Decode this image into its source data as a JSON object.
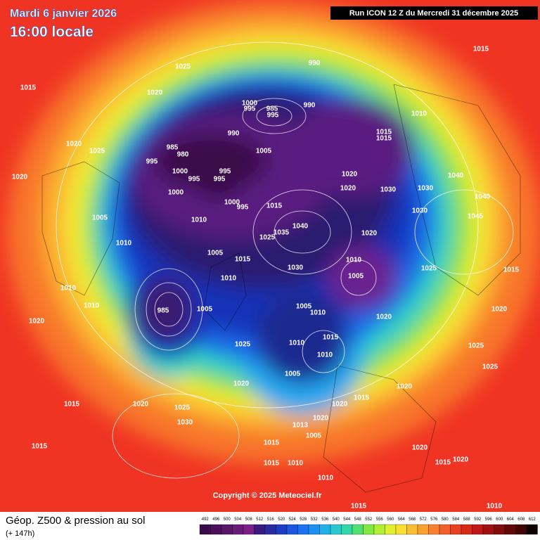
{
  "header": {
    "title": "Mardi 6 janvier 2026",
    "time": "16:00 locale",
    "run": "Run ICON 12 Z du Mercredi 31 décembre 2025"
  },
  "map": {
    "copyright": "Copyright © 2025 Meteociel.fr",
    "pressure_labels": [
      "1015",
      "1025",
      "1020",
      "990",
      "1015",
      "1000",
      "995",
      "985",
      "995",
      "990",
      "1010",
      "990",
      "1015",
      "1015",
      "985",
      "980",
      "1005",
      "995",
      "1020",
      "1025",
      "1020",
      "1020",
      "1000",
      "995",
      "995",
      "995",
      "1020",
      "1030",
      "1030",
      "1040",
      "1040",
      "1000",
      "1000",
      "995",
      "1015",
      "1030",
      "1010",
      "1005",
      "1040",
      "1035",
      "1025",
      "1020",
      "1045",
      "1010",
      "1005",
      "1015",
      "1010",
      "1025",
      "1030",
      "1005",
      "1010",
      "1010",
      "1005",
      "985",
      "1005",
      "1010",
      "1020",
      "1010",
      "1020",
      "1015",
      "1025",
      "1010",
      "1010",
      "1005",
      "1020",
      "1020",
      "1015",
      "1020",
      "1025",
      "1015",
      "1020",
      "1030",
      "1020",
      "1013",
      "1005",
      "1015",
      "1015",
      "1020",
      "1015",
      "1010",
      "1015",
      "1020",
      "1010",
      "1015",
      "1010",
      "1025",
      "1025",
      "1020",
      "1015"
    ]
  },
  "footer": {
    "title": "Géop. Z500 & pression au sol",
    "lead": "(+ 147h)",
    "levels": [
      492,
      496,
      500,
      504,
      508,
      512,
      516,
      520,
      524,
      528,
      532,
      536,
      540,
      544,
      548,
      552,
      556,
      560,
      564,
      568,
      572,
      576,
      580,
      584,
      588,
      592,
      596,
      600,
      604,
      608,
      612
    ]
  }
}
